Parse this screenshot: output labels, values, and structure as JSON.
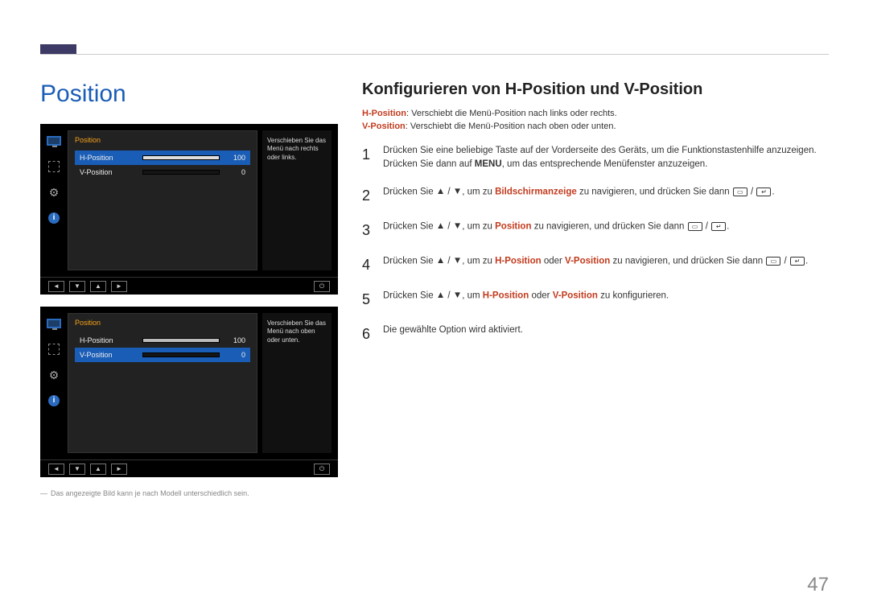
{
  "page_number": "47",
  "section_title": "Position",
  "sub_heading": "Konfigurieren von H-Position und V-Position",
  "descriptions": [
    {
      "label": "H-Position",
      "text": ": Verschiebt die Menü-Position nach links oder rechts."
    },
    {
      "label": "V-Position",
      "text": ": Verschiebt die Menü-Position nach oben oder unten."
    }
  ],
  "steps": [
    {
      "n": "1",
      "parts": [
        {
          "t": "Drücken Sie eine beliebige Taste auf der Vorderseite des Geräts, um die Funktionstastenhilfe anzuzeigen. Drücken Sie dann auf "
        },
        {
          "t": "MENU",
          "bold": true
        },
        {
          "t": ", um das entsprechende Menüfenster anzuzeigen."
        }
      ]
    },
    {
      "n": "2",
      "parts": [
        {
          "t": "Drücken Sie "
        },
        {
          "glyph": "up"
        },
        {
          "t": " / "
        },
        {
          "glyph": "down"
        },
        {
          "t": ", um zu "
        },
        {
          "t": "Bildschirmanzeige",
          "em": true
        },
        {
          "t": " zu navigieren, und drücken Sie dann "
        },
        {
          "glyph": "btn1"
        },
        {
          "t": " / "
        },
        {
          "glyph": "btn2"
        },
        {
          "t": "."
        }
      ]
    },
    {
      "n": "3",
      "parts": [
        {
          "t": "Drücken Sie "
        },
        {
          "glyph": "up"
        },
        {
          "t": " / "
        },
        {
          "glyph": "down"
        },
        {
          "t": ", um zu "
        },
        {
          "t": "Position",
          "em": true
        },
        {
          "t": " zu navigieren, und drücken Sie dann "
        },
        {
          "glyph": "btn1"
        },
        {
          "t": " / "
        },
        {
          "glyph": "btn2"
        },
        {
          "t": "."
        }
      ]
    },
    {
      "n": "4",
      "parts": [
        {
          "t": "Drücken Sie "
        },
        {
          "glyph": "up"
        },
        {
          "t": " / "
        },
        {
          "glyph": "down"
        },
        {
          "t": ", um zu "
        },
        {
          "t": "H-Position",
          "em": true
        },
        {
          "t": " oder "
        },
        {
          "t": "V-Position",
          "em": true
        },
        {
          "t": " zu navigieren, und drücken Sie dann "
        },
        {
          "glyph": "btn1"
        },
        {
          "t": " / "
        },
        {
          "glyph": "btn2"
        },
        {
          "t": "."
        }
      ]
    },
    {
      "n": "5",
      "parts": [
        {
          "t": "Drücken Sie "
        },
        {
          "glyph": "up"
        },
        {
          "t": " / "
        },
        {
          "glyph": "down"
        },
        {
          "t": ", um "
        },
        {
          "t": "H-Position",
          "em": true
        },
        {
          "t": " oder "
        },
        {
          "t": "V-Position",
          "em": true
        },
        {
          "t": " zu konfigurieren."
        }
      ]
    },
    {
      "n": "6",
      "parts": [
        {
          "t": "Die gewählte Option wird aktiviert."
        }
      ]
    }
  ],
  "osd_panels": [
    {
      "title": "Position",
      "help_text": "Verschieben Sie das Menü nach rechts oder links.",
      "rows": [
        {
          "label": "H-Position",
          "value": "100",
          "fill_pct": 100,
          "selected": true
        },
        {
          "label": "V-Position",
          "value": "0",
          "fill_pct": 0,
          "selected": false
        }
      ]
    },
    {
      "title": "Position",
      "help_text": "Verschieben Sie das Menü nach oben oder unten.",
      "rows": [
        {
          "label": "H-Position",
          "value": "100",
          "fill_pct": 100,
          "selected": false
        },
        {
          "label": "V-Position",
          "value": "0",
          "fill_pct": 0,
          "selected": true
        }
      ]
    }
  ],
  "footnote": "Das angezeigte Bild kann je nach Modell unterschiedlich sein.",
  "colors": {
    "accent_blue": "#1a5db6",
    "accent_orange": "#f5a11a",
    "highlight_red": "#c23b1e",
    "header_bar": "#3d3a66"
  },
  "nav_glyphs": {
    "left": "◄",
    "down": "▼",
    "up": "▲",
    "right": "►",
    "power": "⏻"
  }
}
